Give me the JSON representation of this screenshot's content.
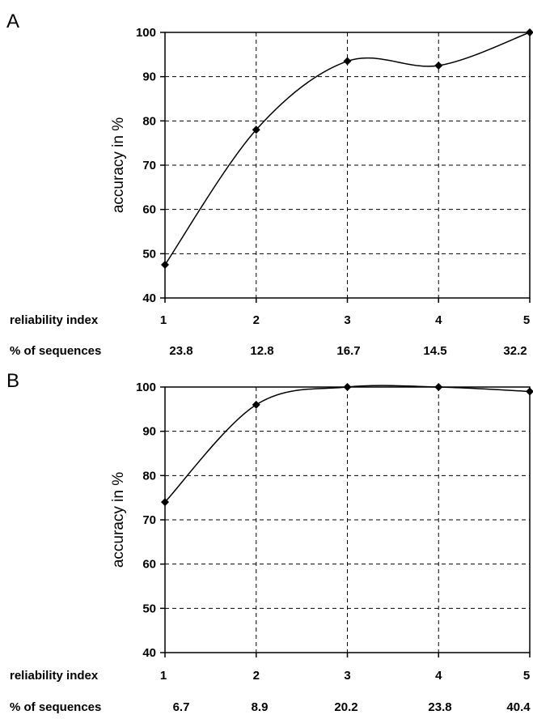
{
  "chart_data": [
    {
      "type": "line",
      "panel_label": "A",
      "ylabel": "accuracy in %",
      "ylim": [
        40,
        100
      ],
      "yticks": [
        "40",
        "50",
        "60",
        "70",
        "80",
        "90",
        "100"
      ],
      "x_row_label": "reliability index",
      "categories": [
        "1",
        "2",
        "3",
        "4",
        "5"
      ],
      "values": [
        47.5,
        78,
        93.5,
        92.5,
        100
      ],
      "sequences_row_label": "% of sequences",
      "sequences": [
        "23.8",
        "12.8",
        "16.7",
        "14.5",
        "32.2"
      ],
      "grid": true,
      "smoothed": true
    },
    {
      "type": "line",
      "panel_label": "B",
      "ylabel": "accuracy in %",
      "ylim": [
        40,
        100
      ],
      "yticks": [
        "40",
        "50",
        "60",
        "70",
        "80",
        "90",
        "100"
      ],
      "x_row_label": "reliability index",
      "categories": [
        "1",
        "2",
        "3",
        "4",
        "5"
      ],
      "values": [
        74,
        96,
        100,
        100,
        99
      ],
      "sequences_row_label": "% of sequences",
      "sequences": [
        "6.7",
        "8.9",
        "20.2",
        "23.8",
        "40.4"
      ],
      "grid": true,
      "smoothed": true
    }
  ],
  "colors": {
    "line": "#000000",
    "grid": "#000000",
    "background": "#ffffff"
  }
}
